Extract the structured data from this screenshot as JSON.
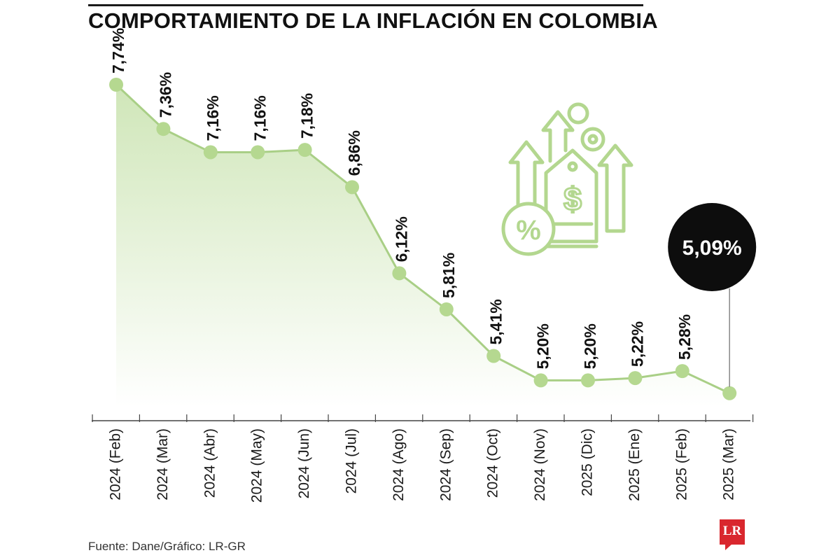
{
  "title": "COMPORTAMIENTO DE LA INFLACIÓN EN COLOMBIA",
  "source": "Fuente: Dane/Gráfico: LR-GR",
  "logo_text": "LR",
  "icon": "inflation-price-tag-percent-icon",
  "colors": {
    "line": "#a9cf86",
    "marker": "#b5d890",
    "fill_top": "#cfe6b8",
    "fill_bottom": "#ffffff",
    "highlight_bubble": "#0d0d0d",
    "highlight_text": "#ffffff",
    "axis": "#444444",
    "label": "#111111",
    "icon": "#b3d78f"
  },
  "chart_data": {
    "type": "area",
    "title": "COMPORTAMIENTO DE LA INFLACIÓN EN COLOMBIA",
    "xlabel": "",
    "ylabel": "",
    "categories": [
      "2024 (Feb)",
      "2024 (Mar)",
      "2024 (Abr)",
      "2024 (May)",
      "2024 (Jun)",
      "2024 (Jul)",
      "2024 (Ago)",
      "2024 (Sep)",
      "2024 (Oct)",
      "2024 (Nov)",
      "2025 (Dic)",
      "2025 (Ene)",
      "2025 (Feb)",
      "2025 (Mar)"
    ],
    "values": [
      7.74,
      7.36,
      7.16,
      7.16,
      7.18,
      6.86,
      6.12,
      5.81,
      5.41,
      5.2,
      5.2,
      5.22,
      5.28,
      5.09
    ],
    "labels": [
      "7,74%",
      "7,36%",
      "7,16%",
      "7,16%",
      "7,18%",
      "6,86%",
      "6,12%",
      "5,81%",
      "5,41%",
      "5,20%",
      "5,20%",
      "5,22%",
      "5,28%",
      "5,09%"
    ],
    "highlight_index": 13,
    "ylim": [
      4.95,
      7.74
    ],
    "grid": false,
    "legend": "none"
  }
}
